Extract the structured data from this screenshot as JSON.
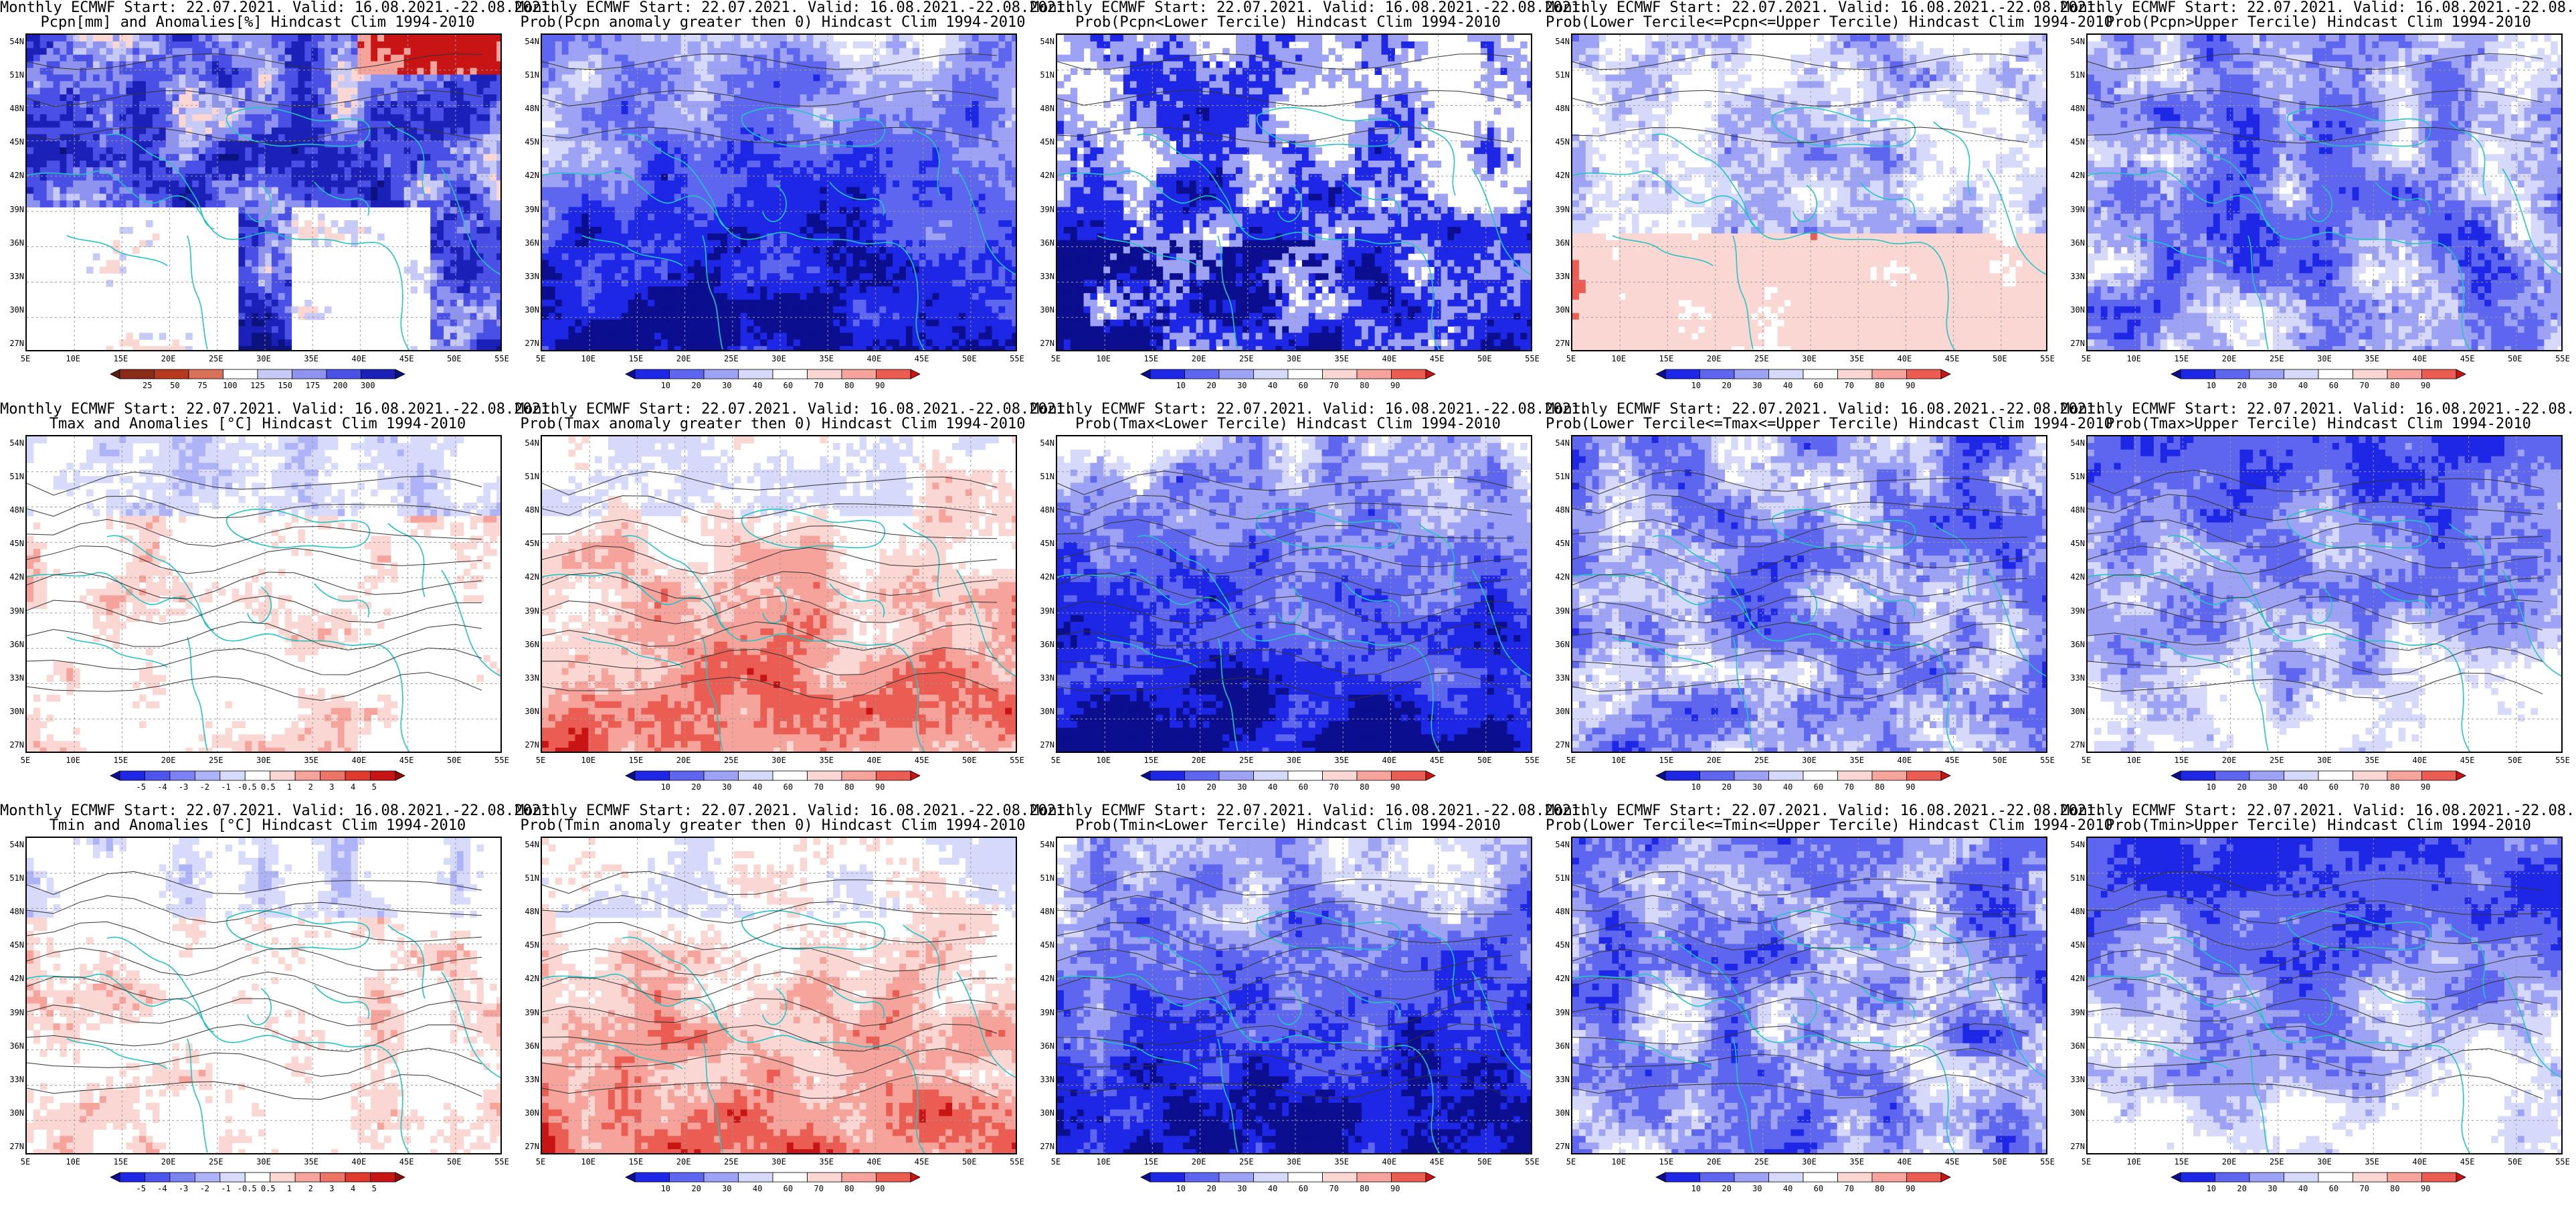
{
  "title_prefix": "Monthly ECMWF Start: 22.07.2021. Valid: 16.08.2021.-22.08.2021.",
  "lat_labels": [
    "54N",
    "51N",
    "48N",
    "45N",
    "42N",
    "39N",
    "36N",
    "33N",
    "30N",
    "27N"
  ],
  "lon_labels": [
    "5E",
    "10E",
    "15E",
    "20E",
    "25E",
    "30E",
    "35E",
    "40E",
    "45E",
    "50E",
    "55E"
  ],
  "colorbars": {
    "pcpn_anom": {
      "labels": [
        "25",
        "50",
        "75",
        "100",
        "125",
        "150",
        "175",
        "200",
        "300"
      ],
      "colors": [
        "#5b1d0f",
        "#8b2b17",
        "#b53a1f",
        "#d8705a",
        "#ffffff",
        "#c7c9f7",
        "#8f93f0",
        "#4a50e6",
        "#1b21b8",
        "#0c137f"
      ],
      "reverse_palette": true
    },
    "prob": {
      "labels": [
        "10",
        "20",
        "30",
        "40",
        "60",
        "70",
        "80",
        "90"
      ],
      "colors": [
        "#0b0f8f",
        "#1e27e6",
        "#5e66ef",
        "#9da2f5",
        "#d7d9fb",
        "#ffffff",
        "#fbd7d4",
        "#f5a39b",
        "#eb5d52",
        "#c81414"
      ]
    },
    "temp_anom": {
      "labels": [
        "-5",
        "-4",
        "-3",
        "-2",
        "-1",
        "-0.5",
        "0.5",
        "1",
        "2",
        "3",
        "4",
        "5"
      ],
      "colors": [
        "#0b0f8f",
        "#1e27e6",
        "#4d55ed",
        "#7c82f2",
        "#aeb2f7",
        "#d8dafb",
        "#ffffff",
        "#fbd7d4",
        "#f5a39b",
        "#ee7468",
        "#e03a2e",
        "#c81414",
        "#8f0b0b"
      ]
    }
  },
  "panels": [
    {
      "id": "pcpn-anom",
      "title2": "Pcpn[mm] and Anomalies[%] Hindcast Clim 1994-2010",
      "cbar": "pcpn_anom",
      "mode": "pcpn",
      "seed": 11
    },
    {
      "id": "pcpn-prob-gt0",
      "title2": "Prob(Pcpn anomaly greater then 0) Hindcast Clim 1994-2010",
      "cbar": "prob",
      "mode": "blue_deep",
      "seed": 23
    },
    {
      "id": "pcpn-lower",
      "title2": "Prob(Pcpn<Lower Tercile) Hindcast Clim 1994-2010",
      "cbar": "prob",
      "mode": "blue_white",
      "seed": 37
    },
    {
      "id": "pcpn-middle",
      "title2": "Prob(Lower Tercile<=Pcpn<=Upper Tercile) Hindcast Clim 1994-2010",
      "cbar": "prob",
      "mode": "mixed_south_red",
      "seed": 41
    },
    {
      "id": "pcpn-upper",
      "title2": "Prob(Pcpn>Upper Tercile) Hindcast Clim 1994-2010",
      "cbar": "prob",
      "mode": "blue_mid",
      "seed": 53
    },
    {
      "id": "tmax-anom",
      "title2": "Tmax and Anomalies [°C] Hindcast Clim 1994-2010",
      "cbar": "temp_anom",
      "mode": "pale_mix",
      "seed": 61
    },
    {
      "id": "tmax-prob-gt0",
      "title2": "Prob(Tmax anomaly greater then 0) Hindcast Clim 1994-2010",
      "cbar": "prob",
      "mode": "red_south",
      "seed": 67
    },
    {
      "id": "tmax-lower",
      "title2": "Prob(Tmax<Lower Tercile) Hindcast Clim 1994-2010",
      "cbar": "prob",
      "mode": "blue_deep",
      "seed": 71
    },
    {
      "id": "tmax-middle",
      "title2": "Prob(Lower Tercile<=Tmax<=Upper Tercile) Hindcast Clim 1994-2010",
      "cbar": "prob",
      "mode": "blue_mid",
      "seed": 79
    },
    {
      "id": "tmax-upper",
      "title2": "Prob(Tmax>Upper Tercile) Hindcast Clim 1994-2010",
      "cbar": "prob",
      "mode": "blue_north_pale",
      "seed": 83
    },
    {
      "id": "tmin-anom",
      "title2": "Tmin and Anomalies [°C] Hindcast Clim 1994-2010",
      "cbar": "temp_anom",
      "mode": "pale_mix",
      "seed": 89
    },
    {
      "id": "tmin-prob-gt0",
      "title2": "Prob(Tmin anomaly greater then 0) Hindcast Clim 1994-2010",
      "cbar": "prob",
      "mode": "red_south",
      "seed": 97
    },
    {
      "id": "tmin-lower",
      "title2": "Prob(Tmin<Lower Tercile) Hindcast Clim 1994-2010",
      "cbar": "prob",
      "mode": "blue_deep",
      "seed": 101
    },
    {
      "id": "tmin-middle",
      "title2": "Prob(Lower Tercile<=Tmin<=Upper Tercile) Hindcast Clim 1994-2010",
      "cbar": "prob",
      "mode": "blue_mid",
      "seed": 103
    },
    {
      "id": "tmin-upper",
      "title2": "Prob(Tmin>Upper Tercile) Hindcast Clim 1994-2010",
      "cbar": "prob",
      "mode": "blue_north_pale",
      "seed": 107
    }
  ]
}
